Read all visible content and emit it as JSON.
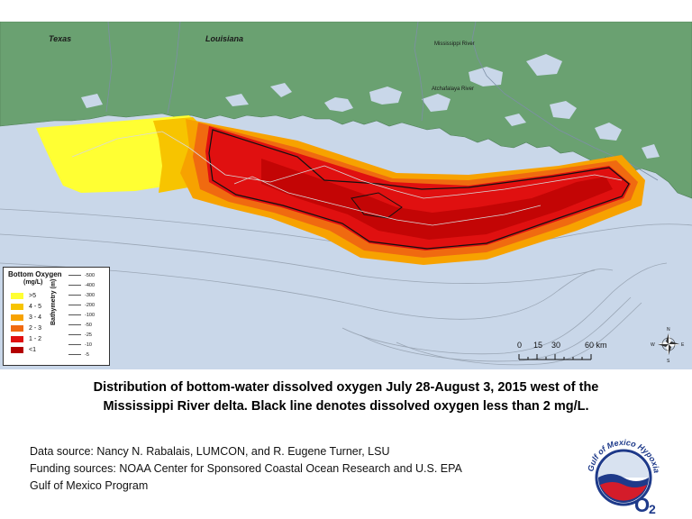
{
  "map": {
    "labels": {
      "texas": "Texas",
      "louisiana": "Louisiana",
      "mississippi_river": "Mississippi River",
      "atchafalaya_river": "Atchafalaya River"
    },
    "colors": {
      "land": "#6aa171",
      "water": "#c9d7e9",
      "oxy_gt5": "#ffff33",
      "oxy_4_5": "#f7c400",
      "oxy_3_4": "#f7a200",
      "oxy_2_3": "#f06a10",
      "oxy_1_2": "#e01010",
      "oxy_lt1": "#b30000"
    }
  },
  "legend": {
    "title": "Bottom Oxygen",
    "units": "(mg/L)",
    "oxygen_classes": [
      {
        "label": ">5",
        "color": "#ffff33"
      },
      {
        "label": "4 - 5",
        "color": "#f7c400"
      },
      {
        "label": "3 - 4",
        "color": "#f7a200"
      },
      {
        "label": "2 - 3",
        "color": "#f06a10"
      },
      {
        "label": "1 - 2",
        "color": "#e01010"
      },
      {
        "label": "<1",
        "color": "#b30000"
      }
    ],
    "bathymetry_title": "Bathymetry (m)",
    "bathymetry_levels": [
      "-500",
      "-400",
      "-300",
      "-200",
      "-100",
      "-50",
      "-25",
      "-10",
      "-5"
    ]
  },
  "scale": {
    "ticks": [
      "0",
      "15",
      "30",
      "60 km"
    ]
  },
  "compass": {
    "north": "N",
    "south": "S",
    "east": "E",
    "west": "W"
  },
  "caption": {
    "line1": "Distribution of bottom-water dissolved oxygen July 28-August 3, 2015 west of the",
    "line2": "Mississippi River delta. Black line denotes dissolved oxygen less than 2 mg/L."
  },
  "sources": {
    "line1": "Data source: Nancy N. Rabalais, LUMCON, and R. Eugene Turner, LSU",
    "line2": "Funding sources: NOAA Center for Sponsored Coastal Ocean Research and U.S. EPA",
    "line3": "Gulf of Mexico Program"
  },
  "logo": {
    "text": "Gulf of Mexico Hypoxia",
    "symbol": "O",
    "subscript": "2"
  }
}
